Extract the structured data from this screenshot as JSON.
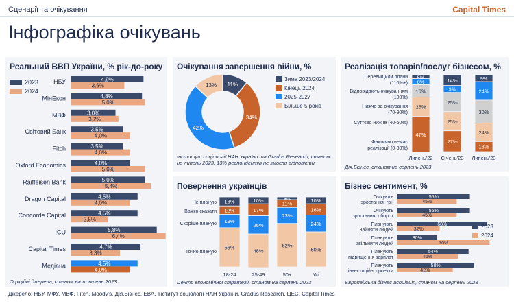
{
  "header": {
    "breadcrumb": "Сценарії та очікування",
    "brand": "Capital Times",
    "title": "Інфографіка очікувань",
    "footer": "Джерело: НБУ, МФУ, МВФ, Fitch, Moody's, Дія.Бізнес, EBA, Інститут соціології НАН України, Gradus Research, ЦЕС, Capital Times"
  },
  "colors": {
    "navy": "#3a4a6b",
    "orange_light": "#e9a882",
    "blue": "#1e88f0",
    "rust": "#c8642b",
    "grey": "#cfd0cf",
    "beige": "#f1c7a6",
    "bg": "#f2f4f7"
  },
  "chart_data": [
    {
      "id": "gdp",
      "type": "bar",
      "title": "Реальний ВВП України, % рік-до-року",
      "source": "Офіційні джерела, станом на жовтень 2023",
      "legend": [
        "2023",
        "2024"
      ],
      "categories": [
        "НБУ",
        "МінЕкон",
        "МВФ",
        "Світовий Банк",
        "Fitch",
        "Oxford Economics",
        "Raiffeisen Bank",
        "Dragon Capital",
        "Concorde Capital",
        "ICU",
        "Capital Times",
        "Медіана"
      ],
      "series": [
        {
          "name": "2023",
          "values": [
            4.9,
            4.8,
            3.0,
            3.5,
            3.5,
            4.0,
            5.0,
            4.5,
            4.5,
            5.8,
            4.7,
            4.5
          ],
          "labels": [
            "4,9%",
            "4,8%",
            "3,0%",
            "3,5%",
            "3,5%",
            "4,0%",
            "5,0%",
            "4,5%",
            "4,5%",
            "5,8%",
            "4,7%",
            "4,5%"
          ]
        },
        {
          "name": "2024",
          "values": [
            3.6,
            5.0,
            3.2,
            4.0,
            4.0,
            5.0,
            5.4,
            4.0,
            2.5,
            6.4,
            3.3,
            4.0
          ],
          "labels": [
            "3,6%",
            "5,0%",
            "3,2%",
            "4,0%",
            "4,0%",
            "5,0%",
            "5,4%",
            "4,0%",
            "2,5%",
            "6,4%",
            "3,3%",
            "4,0%"
          ]
        }
      ]
    },
    {
      "id": "war",
      "type": "pie",
      "title": "Очікування завершення війни, %",
      "source": "Інститут соціології НАН України та Gradus Research, станом на липень 2023, 13% респондентів не змогли відповісти",
      "categories": [
        "Зима 2023/2024",
        "Кінець 2024",
        "2025-2027",
        "Більше 5 років"
      ],
      "values": [
        11,
        34,
        42,
        13
      ],
      "labels": [
        "11%",
        "34%",
        "42%",
        "13%"
      ]
    },
    {
      "id": "sales",
      "type": "bar",
      "stacked": true,
      "title": "Реалізація товарів/послуг бізнесом, %",
      "source": "Дія.Бізнес, станом на серпень 2023",
      "categories": [
        "Липень'22",
        "Січень'23",
        "Липень'23"
      ],
      "series": [
        {
          "name": "Перевищили плани (110%+)",
          "values": [
            5,
            14,
            9
          ],
          "labels": [
            "5%",
            "14%",
            "9%"
          ]
        },
        {
          "name": "Відповідають очікуванням (100%)",
          "values": [
            8,
            9,
            24
          ],
          "labels": [
            "8%",
            "9%",
            "24%"
          ]
        },
        {
          "name": "Нижче за очікування (70-90%)",
          "values": [
            16,
            25,
            30
          ],
          "labels": [
            "16%",
            "25%",
            "30%"
          ]
        },
        {
          "name": "Суттєво нижче (40-60%)",
          "values": [
            25,
            25,
            24
          ],
          "labels": [
            "25%",
            "25%",
            "24%"
          ]
        },
        {
          "name": "Фактично немає реалізації (0-30%)",
          "values": [
            47,
            27,
            13
          ],
          "labels": [
            "47%",
            "27%",
            "13%"
          ]
        }
      ]
    },
    {
      "id": "return",
      "type": "bar",
      "stacked": true,
      "title": "Повернення українців",
      "source": "Центр економічної стратегії, станом на серпень 2023",
      "categories": [
        "18-24",
        "25-49",
        "50+",
        "Усі"
      ],
      "series": [
        {
          "name": "Не планую",
          "values": [
            13,
            10,
            4,
            10
          ],
          "labels": [
            "13%",
            "10%",
            "4%",
            "10%"
          ]
        },
        {
          "name": "Важко сказати",
          "values": [
            12,
            17,
            11,
            16
          ],
          "labels": [
            "12%",
            "17%",
            "11%",
            "16%"
          ]
        },
        {
          "name": "Скоріше планую",
          "values": [
            19,
            26,
            23,
            24
          ],
          "labels": [
            "19%",
            "26%",
            "23%",
            "24%"
          ]
        },
        {
          "name": "Точно планую",
          "values": [
            56,
            48,
            62,
            50
          ],
          "labels": [
            "56%",
            "48%",
            "62%",
            "50%"
          ]
        }
      ]
    },
    {
      "id": "sentiment",
      "type": "bar",
      "title": "Бізнес сентимент, %",
      "source": "Європейська бізнес асоціація, станом на серпень 2023",
      "legend": [
        "2023",
        "2024"
      ],
      "categories": [
        [
          "Очікують",
          "зростання, грн"
        ],
        [
          "Очікують",
          "зростання, оборот"
        ],
        [
          "Планують",
          "найняти людей"
        ],
        [
          "Планують",
          "звільнити людей"
        ],
        [
          "Планують",
          "підвищення зарплат"
        ],
        [
          "Планують",
          "інвестиційні проекти"
        ]
      ],
      "series": [
        {
          "name": "2023",
          "values": [
            55,
            55,
            68,
            30,
            54,
            58
          ],
          "labels": [
            "55%",
            "55%",
            "68%",
            "30%",
            "54%",
            "58%"
          ]
        },
        {
          "name": "2024",
          "values": [
            45,
            45,
            32,
            70,
            46,
            42
          ],
          "labels": [
            "45%",
            "45%",
            "32%",
            "70%",
            "46%",
            "42%"
          ]
        }
      ]
    }
  ]
}
